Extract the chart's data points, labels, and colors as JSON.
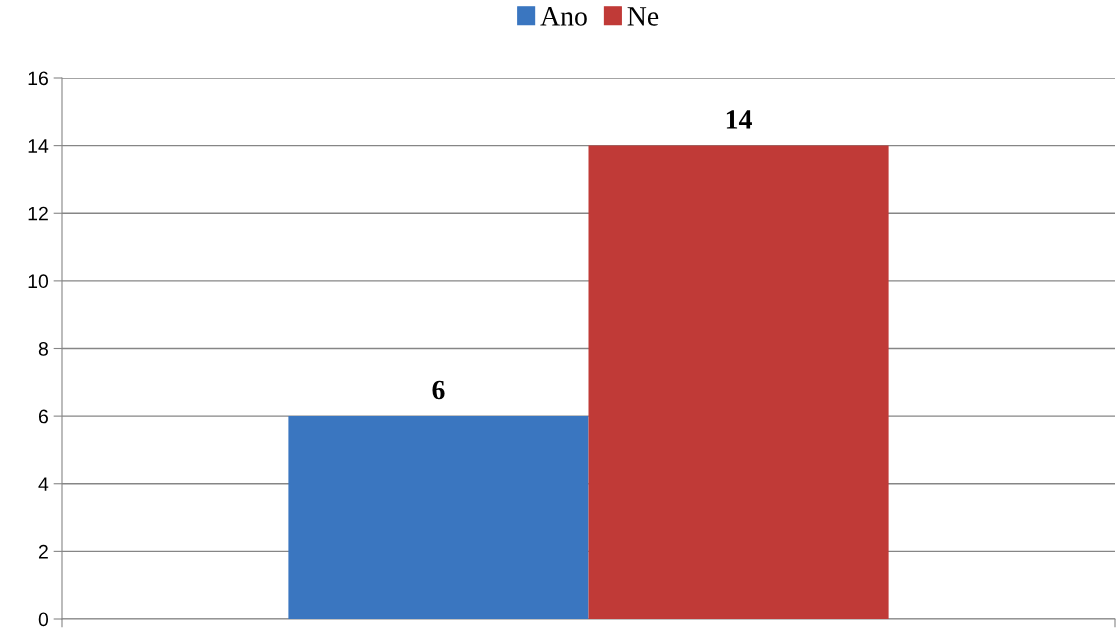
{
  "chart_data": {
    "type": "bar",
    "categories": [
      null
    ],
    "series": [
      {
        "name": "Ano",
        "color": "#3a76c0",
        "values": [
          6
        ]
      },
      {
        "name": "Ne",
        "color": "#c03a37",
        "values": [
          14
        ]
      }
    ],
    "ylim": [
      0,
      16
    ],
    "yticks": [
      0,
      2,
      4,
      6,
      8,
      10,
      12,
      14,
      16
    ],
    "grid": "y",
    "legend": "top",
    "data_labels": true
  }
}
